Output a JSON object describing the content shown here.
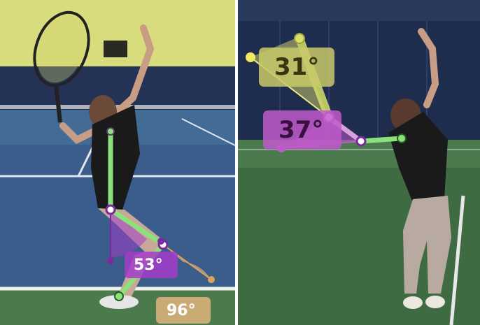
{
  "photos": [
    {
      "name": "left-photo",
      "angles": [
        {
          "label": "53°",
          "color": "#a33cc9",
          "text_color": "#ffffff"
        },
        {
          "label": "96°",
          "color": "#d8b07a",
          "text_color": "#ffffff"
        }
      ]
    },
    {
      "name": "right-photo",
      "angles": [
        {
          "label": "31°",
          "color": "#c9c96a",
          "text_color": "#3a3510"
        },
        {
          "label": "37°",
          "color": "#c05acb",
          "text_color": "#3a1040"
        }
      ]
    }
  ],
  "colors": {
    "skeleton_green": "#8be27a",
    "joint_purple": "#a33cc9",
    "court_blue": "#3a5a8a",
    "court_green": "#3f6b42",
    "wall_yellow": "#d8dc7a",
    "wall_navy": "#1c2a4a"
  }
}
